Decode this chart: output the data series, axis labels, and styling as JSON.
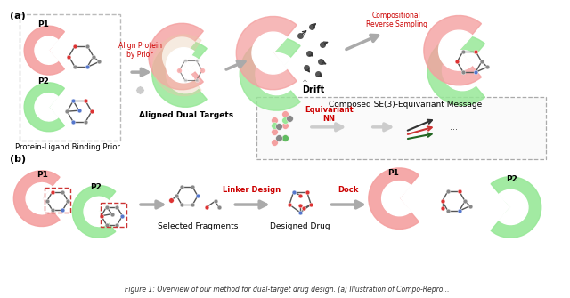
{
  "panel_a_label": "(a)",
  "panel_b_label": "(b)",
  "protein_ligand_binding_prior": "Protein-Ligand Binding Prior",
  "aligned_dual_targets": "Aligned Dual Targets",
  "drift_label": "Drift",
  "compositional_reverse": "Compositional\nReverse Sampling",
  "composed_se3": "Composed SE(3)-Equivariant Message",
  "equivariant_nn": "Equivariant\nNN",
  "align_protein_by_prior": "Align Protein\nby Prior",
  "selected_fragments": "Selected Fragments",
  "designed_drug": "Designed Drug",
  "linker_design": "Linker Design",
  "dock_label": "Dock",
  "p1_label": "P1",
  "p2_label": "P2",
  "pink_color": "#F4A0A0",
  "green_color": "#98E898",
  "gray_node": "#888888",
  "blue_node": "#5577CC",
  "red_node": "#DD3333",
  "edge_color": "#555555",
  "red_text": "#CC0000",
  "arrow_color": "#999999",
  "background": "#FFFFFF",
  "caption": "Figure 1: Overview of our method for dual-target drug design. (a) Illustration of Compo-Repro..."
}
